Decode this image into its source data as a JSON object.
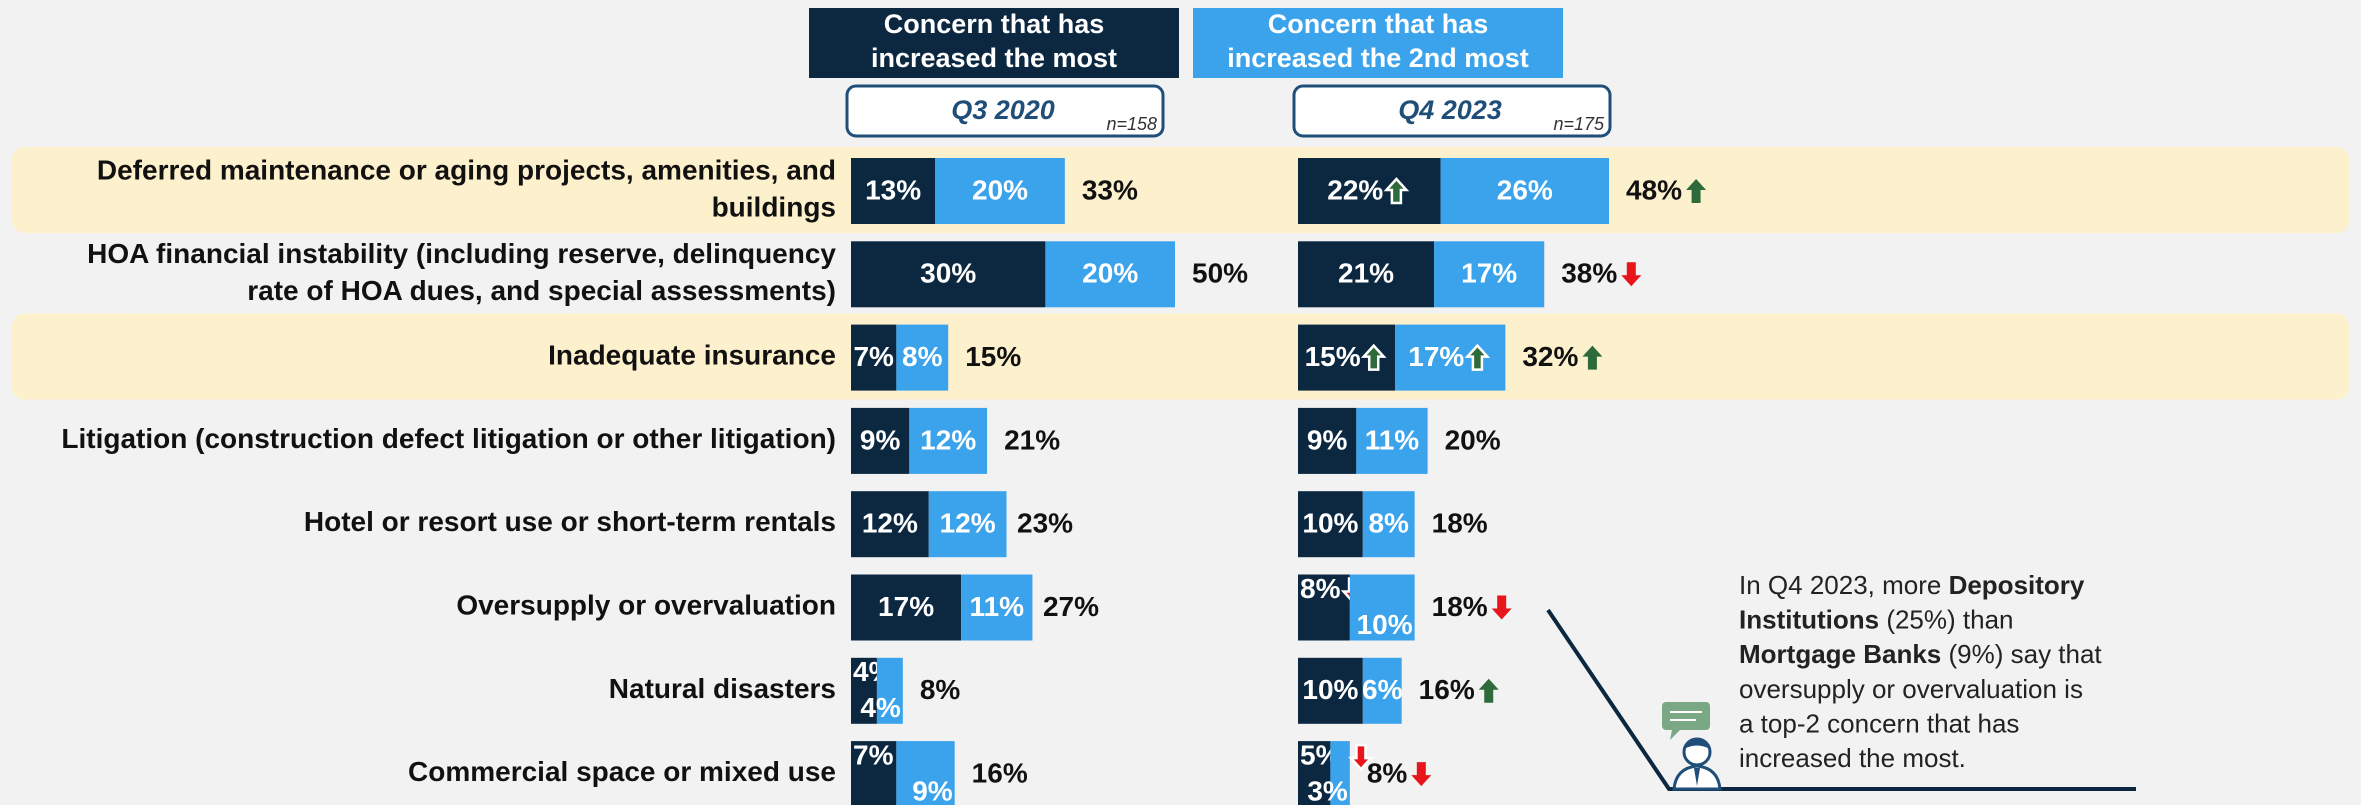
{
  "chart_data": {
    "type": "bar",
    "orientation": "horizontal",
    "stacked": true,
    "categories": [
      "Deferred maintenance or aging projects, amenities, and buildings",
      "HOA financial instability (including reserve, delinquency rate of HOA dues, and special assessments)",
      "Inadequate insurance",
      "Litigation (construction defect litigation or other litigation)",
      "Hotel or resort use or short-term rentals",
      "Oversupply or overvaluation",
      "Natural disasters",
      "Commercial space or mixed use"
    ],
    "highlight": [
      true,
      false,
      true,
      false,
      false,
      false,
      false,
      false
    ],
    "legend": [
      {
        "name": "Concern that has increased the most",
        "color": "#0c2841"
      },
      {
        "name": "Concern that has increased the 2nd most",
        "color": "#3aa3ec"
      }
    ],
    "panels": [
      {
        "title": "Q3 2020",
        "subtitle": "n=158",
        "series": [
          {
            "values": [
              13,
              30,
              7,
              9,
              12,
              17,
              4,
              7
            ],
            "value_labels": [
              "13%",
              "30%",
              "7%",
              "9%",
              "12%",
              "17%",
              "4%",
              "7%"
            ]
          },
          {
            "values": [
              20,
              20,
              8,
              12,
              12,
              11,
              4,
              9
            ],
            "value_labels": [
              "20%",
              "20%",
              "8%",
              "12%",
              "12%",
              "11%",
              "4%",
              "9%"
            ]
          }
        ],
        "totals": [
          33,
          50,
          15,
          21,
          23,
          27,
          8,
          16
        ],
        "total_labels": [
          "33%",
          "50%",
          "15%",
          "21%",
          "23%",
          "27%",
          "8%",
          "16%"
        ]
      },
      {
        "title": "Q4 2023",
        "subtitle": "n=175",
        "series": [
          {
            "values": [
              22,
              21,
              15,
              9,
              10,
              8,
              10,
              5
            ],
            "value_labels": [
              "22%",
              "21%",
              "15%",
              "9%",
              "10%",
              "8%",
              "10%",
              "5%"
            ],
            "arrows": [
              "up",
              null,
              "up",
              null,
              null,
              "down",
              null,
              null
            ]
          },
          {
            "values": [
              26,
              17,
              17,
              11,
              8,
              10,
              6,
              3
            ],
            "value_labels": [
              "26%",
              "17%",
              "17%",
              "11%",
              "8%",
              "10%",
              "6%",
              "3%"
            ],
            "arrows": [
              null,
              null,
              "up",
              null,
              null,
              null,
              null,
              "down"
            ]
          }
        ],
        "totals": [
          48,
          38,
          32,
          20,
          18,
          18,
          16,
          8
        ],
        "total_labels": [
          "48%",
          "38%",
          "32%",
          "20%",
          "18%",
          "18%",
          "16%",
          "8%"
        ],
        "total_arrows": [
          "up",
          "down",
          "up",
          null,
          null,
          "down",
          "up",
          "down"
        ]
      }
    ],
    "arrow_colors": {
      "up": "#2e6b3a",
      "down": "#e8161b"
    },
    "annotation": [
      [
        {
          "text": "In Q4 2023, more "
        },
        {
          "text": "Depository",
          "bold": true
        }
      ],
      [
        {
          "text": "Institutions",
          "bold": true
        },
        {
          "text": " (25%) than"
        }
      ],
      [
        {
          "text": "Mortgage Banks",
          "bold": true
        },
        {
          "text": " (9%) say that"
        }
      ],
      [
        {
          "text": "oversupply or overvaluation is"
        }
      ],
      [
        {
          "text": "a top-2 concern that has"
        }
      ],
      [
        {
          "text": "increased the most."
        }
      ]
    ]
  }
}
